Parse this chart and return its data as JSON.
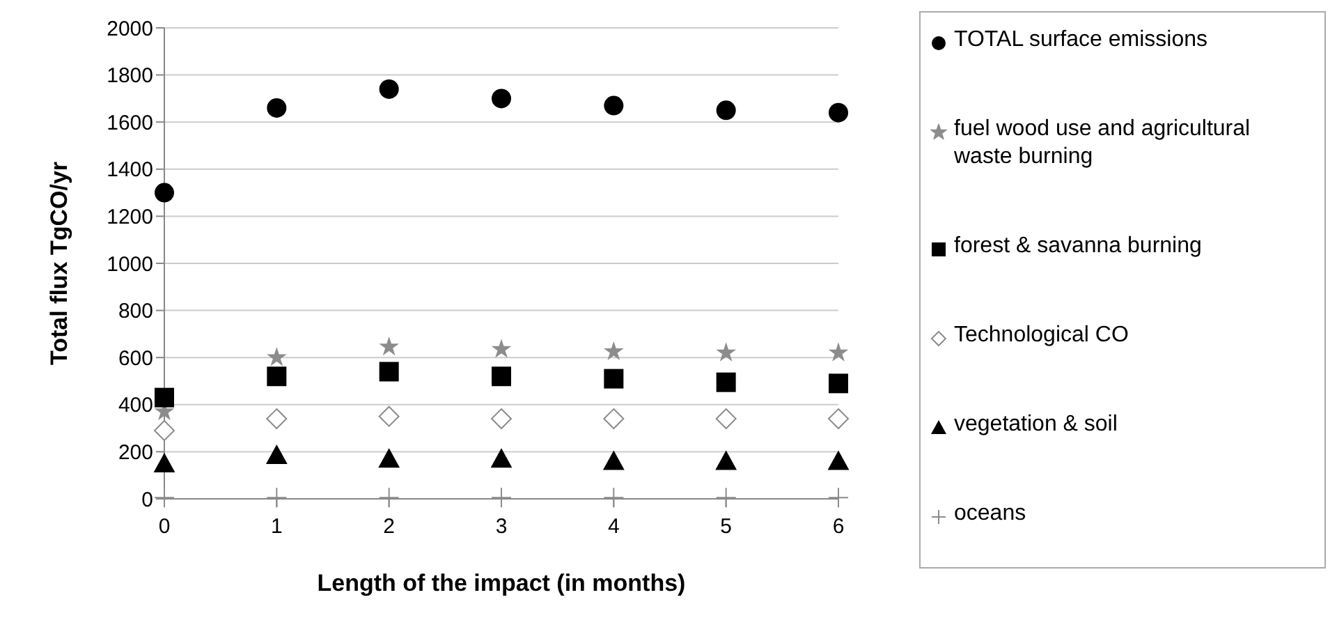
{
  "chart_data": {
    "type": "scatter",
    "xlabel": "Length of the impact (in months)",
    "ylabel": "Total flux TgCO/yr",
    "x": [
      0,
      1,
      2,
      3,
      4,
      5,
      6
    ],
    "xlim": [
      0,
      6
    ],
    "xticks": [
      0,
      1,
      2,
      3,
      4,
      5,
      6
    ],
    "ylim": [
      0,
      2000
    ],
    "yticks": [
      0,
      200,
      400,
      600,
      800,
      1000,
      1200,
      1400,
      1600,
      1800,
      2000
    ],
    "grid": "y",
    "legend": "right",
    "series": [
      {
        "name": "TOTAL surface emissions",
        "color": "#000000",
        "marker": "circle",
        "values": [
          1300,
          1660,
          1740,
          1700,
          1670,
          1650,
          1640
        ]
      },
      {
        "name": "fuel wood use and agricultural waste burning",
        "color": "#8c8c8c",
        "marker": "star",
        "values": [
          370,
          600,
          645,
          635,
          625,
          620,
          620
        ]
      },
      {
        "name": "forest & savanna burning",
        "color": "#000000",
        "marker": "square",
        "values": [
          430,
          520,
          540,
          520,
          510,
          495,
          490
        ]
      },
      {
        "name": "Technological CO",
        "color": "#8c8c8c",
        "marker": "diamond",
        "values": [
          290,
          340,
          350,
          340,
          340,
          340,
          340
        ]
      },
      {
        "name": "vegetation & soil",
        "color": "#000000",
        "marker": "triangle",
        "values": [
          150,
          185,
          170,
          170,
          160,
          160,
          160
        ]
      },
      {
        "name": "oceans",
        "color": "#8c8c8c",
        "marker": "cross",
        "values": [
          5,
          5,
          5,
          5,
          5,
          5,
          5
        ]
      }
    ]
  }
}
